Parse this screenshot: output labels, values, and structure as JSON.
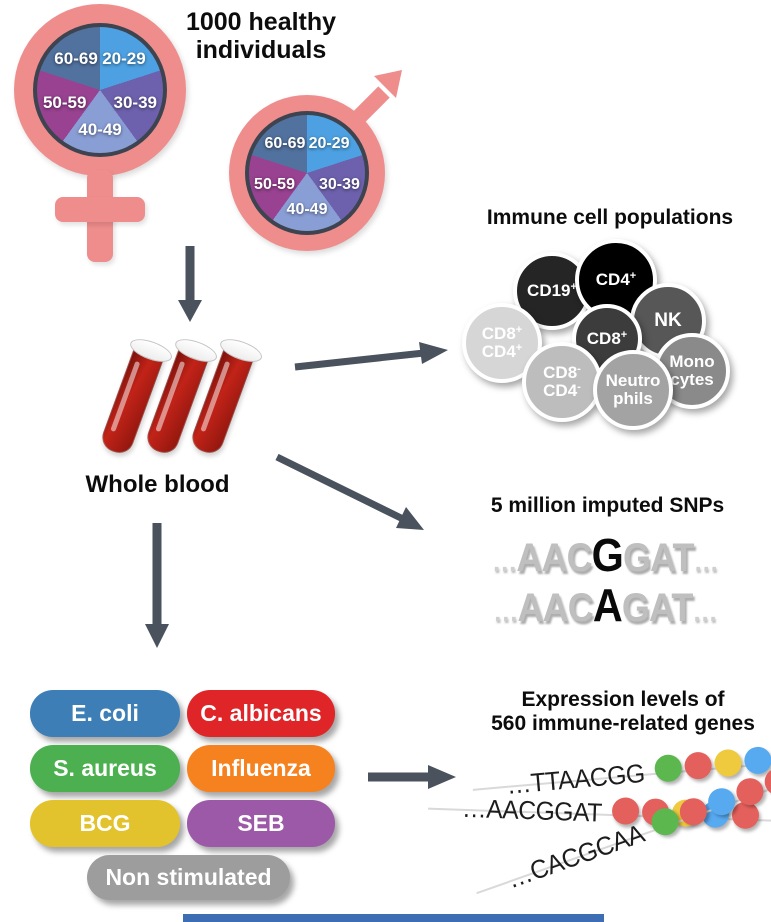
{
  "colors": {
    "pink": "#ef8c8c",
    "arrow": "#4a525e",
    "pie_border": "#3d4450",
    "blood_red": "#b22017",
    "bottom_bar_blue": "#3d6eb4"
  },
  "header": {
    "title": "1000 healthy individuals"
  },
  "age_pie": {
    "slices": [
      {
        "label": "20-29",
        "color": "#4da1e2"
      },
      {
        "label": "30-39",
        "color": "#6d61ad"
      },
      {
        "label": "40-49",
        "color": "#8a9ed6"
      },
      {
        "label": "50-59",
        "color": "#984291"
      },
      {
        "label": "60-69",
        "color": "#51719e"
      }
    ]
  },
  "whole_blood": {
    "label": "Whole blood"
  },
  "immune_cells": {
    "title": "Immune cell populations",
    "cells": [
      {
        "name": "CD19+",
        "color": "#252525",
        "lines": [
          {
            "t": "CD19",
            "sup": "+"
          }
        ]
      },
      {
        "name": "CD4+",
        "color": "#000000",
        "lines": [
          {
            "t": "CD4",
            "sup": "+"
          }
        ]
      },
      {
        "name": "NK",
        "color": "#575757",
        "lines": [
          {
            "t": "NK",
            "sup": ""
          }
        ]
      },
      {
        "name": "Monocytes",
        "color": "#8a8a8a",
        "lines": [
          {
            "t": "Mono",
            "sup": ""
          },
          {
            "t": "cytes",
            "sup": ""
          }
        ]
      },
      {
        "name": "CD8+",
        "color": "#3c3c3c",
        "lines": [
          {
            "t": "CD8",
            "sup": "+"
          }
        ]
      },
      {
        "name": "CD8+CD4+",
        "color": "#d6d6d6",
        "lines": [
          {
            "t": "CD8",
            "sup": "+"
          },
          {
            "t": "CD4",
            "sup": "+"
          }
        ]
      },
      {
        "name": "CD8-CD4-",
        "color": "#bdbdbd",
        "lines": [
          {
            "t": "CD8",
            "sup": "-"
          },
          {
            "t": "CD4",
            "sup": "-"
          }
        ]
      },
      {
        "name": "Neutrophils",
        "color": "#a3a3a3",
        "lines": [
          {
            "t": "Neutro",
            "sup": ""
          },
          {
            "t": "phils",
            "sup": ""
          }
        ]
      }
    ]
  },
  "snps": {
    "title": "5 million imputed SNPs",
    "ellipsis": "…",
    "sequences": [
      {
        "prefix": "AAC",
        "variant": "G",
        "suffix": "GAT"
      },
      {
        "prefix": "AAC",
        "variant": "A",
        "suffix": "GAT"
      }
    ]
  },
  "stimuli": {
    "items": [
      {
        "label": "E. coli",
        "color": "#3c7eb5"
      },
      {
        "label": "C. albicans",
        "color": "#e02528"
      },
      {
        "label": "S. aureus",
        "color": "#4cb050"
      },
      {
        "label": "Influenza",
        "color": "#f5821f"
      },
      {
        "label": "BCG",
        "color": "#e3c32d"
      },
      {
        "label": "SEB",
        "color": "#9c59a8"
      },
      {
        "label": "Non stimulated",
        "color": "#9d9d9d"
      }
    ]
  },
  "expression": {
    "title_line1": "Expression levels of",
    "title_line2": "560 immune-related genes",
    "dot_colors": {
      "green": "#5cb84e",
      "red": "#e4605c",
      "yellow": "#efc93e",
      "blue": "#57a9f0"
    },
    "genes": [
      {
        "sequence": "…TTAACGG",
        "dots": [
          "green",
          "red",
          "yellow",
          "blue",
          "blue"
        ]
      },
      {
        "sequence": "…AACGGAT",
        "dots": [
          "red",
          "red",
          "yellow",
          "blue",
          "red"
        ]
      },
      {
        "sequence": "…CACGCAA",
        "dots": [
          "green",
          "red",
          "blue",
          "red",
          "red"
        ]
      }
    ]
  }
}
